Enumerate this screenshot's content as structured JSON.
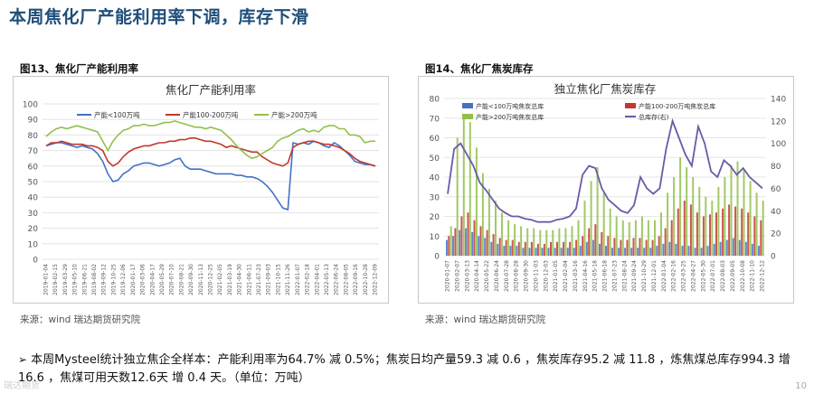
{
  "page_title": "本周焦化厂产能利用率下调，库存下滑",
  "fig13": {
    "label": "图13、焦化厂产能利用率",
    "source": "来源：wind   瑞达期货研究院"
  },
  "fig14": {
    "label": "图14、焦化厂焦炭库存",
    "source": "来源：wind   瑞达期货研究院"
  },
  "summary": "本周Mysteel统计独立焦企全样本：产能利用率为64.7% 减 0.5%；焦炭日均产量59.3 减 0.6 ，焦炭库存95.2 减 11.8 ，炼焦煤总库存994.3 增 16.6 ，焦煤可用天数12.6天 增 0.4 天。（单位：万吨）",
  "bullet": "➢",
  "page_number": "10",
  "logo_text": "瑞达期货",
  "colors": {
    "blue": "#4472c4",
    "red": "#c0392b",
    "green": "#92c04a",
    "purple": "#6a5aa8",
    "title": "#1f4e79"
  },
  "chart_data": [
    {
      "type": "line",
      "title": "焦化厂产能利用率",
      "ylim": [
        0,
        100
      ],
      "yticks": [
        "0",
        "10",
        "20",
        "30",
        "40",
        "50",
        "60",
        "70",
        "80",
        "90",
        "100"
      ],
      "x_labels": [
        "2019-01-04",
        "2019-02-15",
        "2019-03-29",
        "2019-05-10",
        "2019-06-21",
        "2019-08-02",
        "2019-09-12",
        "2019-10-25",
        "2019-12-06",
        "2020-01-17",
        "2020-03-06",
        "2020-04-17",
        "2020-05-29",
        "2020-07-10",
        "2020-08-21",
        "2020-09-30",
        "2020-11-13",
        "2020-12-25",
        "2021-02-05",
        "2021-03-19",
        "2021-04-30",
        "2021-06-11",
        "2021-07-23",
        "2021-09-03",
        "2021-10-15",
        "2021-11-26",
        "2022-01-07",
        "2022-02-18",
        "2022-04-01",
        "2022-05-13",
        "2022-06-24",
        "2022-08-05",
        "2022-09-16",
        "2022-10-28",
        "2022-12-09"
      ],
      "legend": "top",
      "series": [
        {
          "name": "产能<100万吨",
          "color": "#4472c4",
          "values": [
            73,
            74,
            75,
            75,
            74,
            73,
            72,
            73,
            72,
            71,
            68,
            63,
            55,
            50,
            51,
            55,
            57,
            60,
            61,
            62,
            62,
            61,
            60,
            61,
            62,
            64,
            65,
            60,
            58,
            58,
            58,
            57,
            56,
            55,
            55,
            55,
            55,
            54,
            54,
            53,
            53,
            52,
            50,
            47,
            43,
            38,
            33,
            32,
            75,
            74,
            75,
            74,
            76,
            75,
            73,
            72,
            75,
            73,
            70,
            67,
            63,
            62,
            61,
            61,
            60
          ]
        },
        {
          "name": "产能100-200万吨",
          "color": "#c0392b",
          "values": [
            73,
            75,
            75,
            76,
            75,
            74,
            74,
            74,
            73,
            73,
            72,
            70,
            63,
            60,
            62,
            66,
            69,
            71,
            72,
            73,
            73,
            74,
            75,
            75,
            76,
            76,
            77,
            77,
            78,
            78,
            77,
            76,
            76,
            75,
            74,
            72,
            73,
            72,
            71,
            70,
            69,
            69,
            66,
            64,
            62,
            61,
            60,
            62,
            72,
            74,
            75,
            76,
            76,
            75,
            74,
            74,
            73,
            72,
            70,
            68,
            65,
            63,
            62,
            61,
            60
          ]
        },
        {
          "name": "产能>200万吨",
          "color": "#92c04a",
          "values": [
            79,
            82,
            84,
            85,
            84,
            85,
            86,
            85,
            84,
            83,
            82,
            76,
            70,
            76,
            80,
            83,
            84,
            86,
            86,
            87,
            86,
            86,
            87,
            88,
            88,
            89,
            88,
            87,
            86,
            85,
            85,
            84,
            85,
            84,
            83,
            80,
            77,
            73,
            70,
            67,
            65,
            66,
            68,
            70,
            72,
            76,
            78,
            79,
            81,
            83,
            84,
            82,
            83,
            82,
            85,
            86,
            86,
            84,
            84,
            80,
            80,
            79,
            75,
            76,
            76
          ]
        }
      ]
    },
    {
      "type": "bar+line",
      "title": "独立焦化厂焦炭库存",
      "ylim_left": [
        0,
        80
      ],
      "ylim_right": [
        0,
        140
      ],
      "yticks_left": [
        "0",
        "10",
        "20",
        "30",
        "40",
        "50",
        "60",
        "70",
        "80"
      ],
      "yticks_right": [
        "0",
        "20",
        "40",
        "60",
        "80",
        "100",
        "120",
        "140"
      ],
      "x_labels": [
        "2020-01-07",
        "2020-02-07",
        "2020-03-13",
        "2020-04-14",
        "2020-05-22",
        "2020-06-24",
        "2020-07-28",
        "2020-08-28",
        "2020-09-30",
        "2020-11-03",
        "2020-12-03",
        "2021-01-05",
        "2021-02-04",
        "2021-03-16",
        "2021-04-16",
        "2021-05-18",
        "2021-06-18",
        "2021-07-23",
        "2021-08-24",
        "2021-09-24",
        "2021-10-29",
        "2021-12-01",
        "2022-01-04",
        "2022-02-16",
        "2022-03-25",
        "2022-04-27",
        "2022-05-30",
        "2022-07-01",
        "2022-08-03",
        "2022-09-05",
        "2022-10-08",
        "2022-11-10",
        "2022-12-12"
      ],
      "legend": "top",
      "series": [
        {
          "name": "产能<100万吨焦炭总库",
          "color": "#4472c4",
          "kind": "bar",
          "axis": "left",
          "values": [
            8,
            10,
            13,
            14,
            12,
            10,
            9,
            7,
            6,
            5,
            5,
            5,
            4,
            4,
            4,
            4,
            4,
            4,
            4,
            4,
            4,
            5,
            7,
            8,
            6,
            5,
            4,
            4,
            4,
            4,
            4,
            4,
            4,
            5,
            6,
            7,
            6,
            5,
            5,
            4,
            4,
            5,
            6,
            7,
            8,
            9,
            8,
            7,
            6,
            5
          ]
        },
        {
          "name": "产能100-200万吨焦炭总库",
          "color": "#c0392b",
          "kind": "bar",
          "axis": "left",
          "values": [
            10,
            14,
            20,
            22,
            18,
            15,
            13,
            11,
            9,
            8,
            8,
            7,
            7,
            7,
            6,
            6,
            7,
            7,
            7,
            7,
            8,
            10,
            14,
            16,
            12,
            10,
            9,
            8,
            8,
            9,
            9,
            8,
            8,
            10,
            14,
            18,
            24,
            28,
            26,
            22,
            20,
            21,
            22,
            24,
            26,
            25,
            24,
            22,
            20,
            18
          ]
        },
        {
          "name": "产能>200万吨焦炭总库",
          "color": "#92c04a",
          "kind": "bar",
          "axis": "left",
          "values": [
            15,
            60,
            70,
            68,
            55,
            42,
            34,
            28,
            22,
            18,
            16,
            15,
            14,
            14,
            13,
            13,
            13,
            14,
            14,
            15,
            18,
            28,
            38,
            45,
            32,
            24,
            20,
            18,
            17,
            18,
            20,
            18,
            18,
            22,
            32,
            40,
            50,
            45,
            40,
            35,
            30,
            28,
            35,
            40,
            46,
            48,
            44,
            38,
            32,
            28
          ]
        },
        {
          "name": "总库存(右)",
          "color": "#6a5aa8",
          "kind": "line",
          "axis": "right",
          "values": [
            55,
            95,
            100,
            90,
            80,
            65,
            58,
            50,
            42,
            38,
            35,
            35,
            33,
            32,
            30,
            30,
            30,
            32,
            33,
            35,
            42,
            72,
            80,
            78,
            60,
            50,
            45,
            40,
            38,
            45,
            70,
            60,
            55,
            60,
            95,
            120,
            105,
            90,
            80,
            115,
            100,
            75,
            70,
            85,
            80,
            72,
            78,
            70,
            65,
            60
          ]
        }
      ]
    }
  ]
}
